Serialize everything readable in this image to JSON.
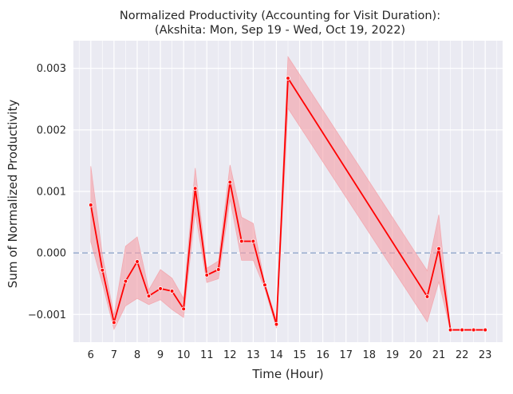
{
  "chart_data": {
    "type": "line",
    "title": "Normalized Productivity (Accounting for Visit Duration):",
    "subtitle": "(Akshita: Mon, Sep 19 - Wed, Oct 19, 2022)",
    "xlabel": "Time (Hour)",
    "ylabel": "Sum of Normalized Productivity",
    "xlim": [
      5.25,
      23.75
    ],
    "ylim": [
      -0.00145,
      0.00345
    ],
    "x_ticks": [
      6,
      7,
      8,
      9,
      10,
      11,
      12,
      13,
      14,
      15,
      16,
      17,
      18,
      19,
      20,
      21,
      22,
      23
    ],
    "y_ticks": [
      -0.001,
      0.0,
      0.001,
      0.002,
      0.003
    ],
    "y_tick_labels": [
      "−0.001",
      "0.000",
      "0.001",
      "0.002",
      "0.003"
    ],
    "grid": true,
    "minor_x_grid_step": 0.5,
    "reference_line": {
      "y": 0.0,
      "style": "dashed",
      "color": "#9fb1d1"
    },
    "background": "#eaeaf2",
    "line_color": "#ff0000",
    "band_color": "#f4a0a8",
    "series": [
      {
        "x": [
          6.0,
          6.5,
          7.0,
          7.5,
          8.0,
          8.5,
          9.0,
          9.5,
          10.0,
          10.5,
          11.0,
          11.5,
          12.0,
          12.5,
          13.0,
          13.5,
          14.0,
          14.5,
          20.5,
          21.0,
          21.5,
          22.0,
          22.5,
          23.0
        ],
        "y": [
          0.00078,
          -0.00028,
          -0.00113,
          -0.00046,
          -0.00014,
          -0.0007,
          -0.00058,
          -0.00062,
          -0.00091,
          0.00105,
          -0.00036,
          -0.00027,
          0.00115,
          0.00019,
          0.00019,
          -0.00052,
          -0.00116,
          0.00284,
          -0.00071,
          7e-05,
          -0.00125,
          -0.00125,
          -0.00125,
          -0.00125
        ],
        "lower": [
          0.00018,
          -0.0005,
          -0.00124,
          -0.00086,
          -0.00074,
          -0.00084,
          -0.00076,
          -0.00092,
          -0.00105,
          0.00066,
          -0.00048,
          -0.00042,
          0.00087,
          -0.00012,
          -0.00012,
          -0.00058,
          -0.00122,
          0.00235,
          -0.00112,
          -0.00047,
          -0.00126,
          -0.00126,
          -0.00126,
          -0.00126
        ],
        "upper": [
          0.00141,
          -4e-05,
          -0.00101,
          0.00011,
          0.00026,
          -0.0006,
          -0.00027,
          -0.00041,
          -0.00074,
          0.00138,
          -0.00025,
          -0.00013,
          0.00143,
          0.00058,
          0.00048,
          -0.0005,
          -0.00109,
          0.00319,
          -0.00029,
          0.00062,
          -0.00124,
          -0.00124,
          -0.00124,
          -0.00124
        ]
      }
    ]
  }
}
